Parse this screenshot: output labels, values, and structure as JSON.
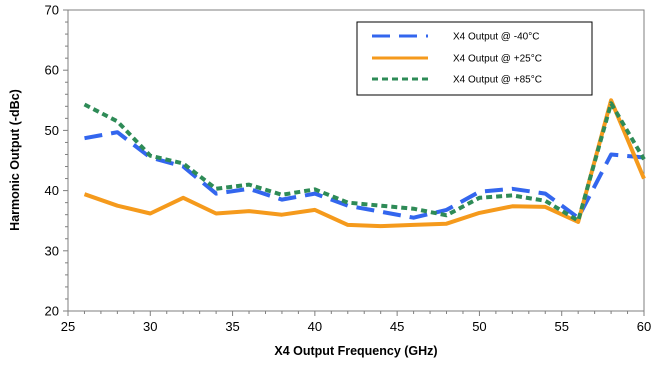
{
  "chart_data": {
    "type": "line",
    "title": "",
    "xlabel": "X4 Output Frequency (GHz)",
    "ylabel": "Harmonic Output (-dBc)",
    "xlim": [
      25,
      60
    ],
    "ylim": [
      20,
      70
    ],
    "xticks": [
      25,
      30,
      35,
      40,
      45,
      50,
      55,
      60
    ],
    "yticks": [
      20,
      30,
      40,
      50,
      60,
      70
    ],
    "grid": false,
    "legend_position": "top-right",
    "series": [
      {
        "name": "X4 Output @ -40°C",
        "color": "#3366ee",
        "dash": "dashed-long",
        "x": [
          26,
          28,
          30,
          32,
          34,
          36,
          38,
          40,
          42,
          44,
          46,
          48,
          50,
          52,
          54,
          56,
          58,
          60
        ],
        "y": [
          48.7,
          49.7,
          45.5,
          44.0,
          39.5,
          40.3,
          38.5,
          39.5,
          37.5,
          36.5,
          35.5,
          36.8,
          39.8,
          40.3,
          39.5,
          35.5,
          46.0,
          45.5
        ]
      },
      {
        "name": "X4 Output @ +25°C",
        "color": "#f59a1c",
        "dash": "solid",
        "x": [
          26,
          28,
          30,
          32,
          34,
          36,
          38,
          40,
          42,
          44,
          46,
          48,
          50,
          52,
          54,
          56,
          58,
          60
        ],
        "y": [
          39.4,
          37.5,
          36.2,
          38.8,
          36.2,
          36.6,
          36.0,
          36.8,
          34.3,
          34.1,
          34.3,
          34.5,
          36.3,
          37.4,
          37.3,
          34.8,
          55.0,
          42.0
        ]
      },
      {
        "name": "X4 Output @ +85°C",
        "color": "#2e8b57",
        "dash": "dotted-short",
        "x": [
          26,
          28,
          30,
          32,
          34,
          36,
          38,
          40,
          42,
          44,
          46,
          48,
          50,
          52,
          54,
          56,
          58,
          60
        ],
        "y": [
          54.3,
          51.5,
          45.8,
          44.5,
          40.3,
          41.0,
          39.3,
          40.2,
          38.0,
          37.5,
          37.0,
          35.9,
          38.8,
          39.2,
          38.3,
          35.0,
          54.5,
          45.2
        ]
      }
    ]
  }
}
